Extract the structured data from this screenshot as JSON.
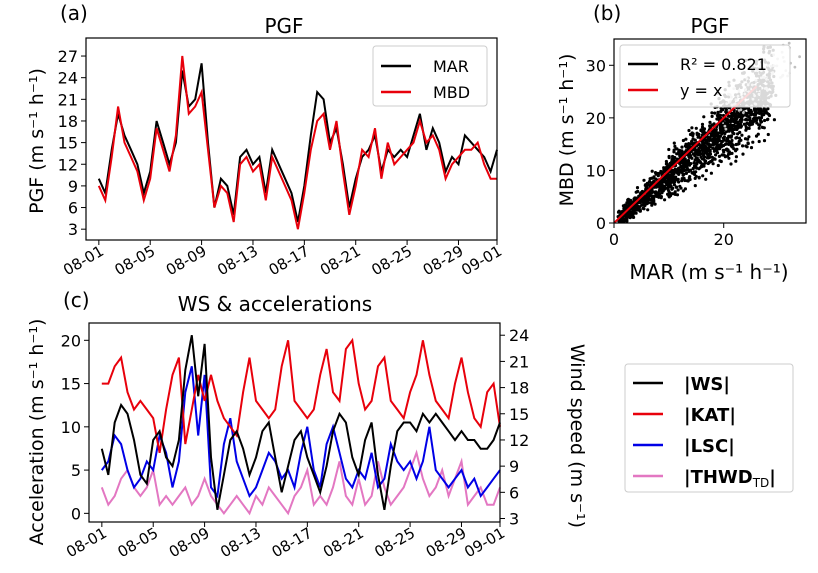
{
  "chart_data": [
    {
      "panel_label": "(a)",
      "type": "line",
      "title": "PGF",
      "xlabel": "",
      "ylabel": "PGF (m s⁻¹ h⁻¹)",
      "ylim": [
        1.5,
        29.5
      ],
      "yticks": [
        3,
        6,
        9,
        12,
        15,
        18,
        21,
        24,
        27
      ],
      "xlim": [
        -1,
        31
      ],
      "xtick_positions": [
        0,
        4,
        8,
        12,
        16,
        20,
        24,
        28,
        31
      ],
      "xtick_labels": [
        "08-01",
        "08-05",
        "08-09",
        "08-13",
        "08-17",
        "08-21",
        "08-25",
        "08-29",
        "09-01"
      ],
      "legend": "top-right",
      "series": [
        {
          "name": "MAR",
          "color": "#000000",
          "x": [
            0,
            0.5,
            1,
            1.5,
            2,
            2.5,
            3,
            3.5,
            4,
            4.5,
            5,
            5.5,
            6,
            6.5,
            7,
            7.5,
            8,
            8.5,
            9,
            9.5,
            10,
            10.5,
            11,
            11.5,
            12,
            12.5,
            13,
            13.5,
            14,
            14.5,
            15,
            15.5,
            16,
            16.5,
            17,
            17.5,
            18,
            18.5,
            19,
            19.5,
            20,
            20.5,
            21,
            21.5,
            22,
            22.5,
            23,
            23.5,
            24,
            24.5,
            25,
            25.5,
            26,
            26.5,
            27,
            27.5,
            28,
            28.5,
            29,
            29.5,
            30,
            30.5,
            31
          ],
          "y": [
            10,
            8,
            14,
            19,
            16,
            14,
            12,
            8,
            11,
            18,
            15,
            12,
            15,
            25,
            20,
            21,
            26,
            15,
            6,
            10,
            9,
            5,
            13,
            14,
            12,
            13,
            8,
            14,
            12,
            10,
            8,
            4,
            9,
            16,
            22,
            21,
            15,
            17,
            12,
            6,
            10,
            13,
            14,
            16,
            11,
            14,
            13,
            14,
            13,
            16,
            19,
            14,
            17,
            15,
            11,
            13,
            12,
            16,
            15,
            14,
            13,
            11,
            14
          ]
        },
        {
          "name": "MBD",
          "color": "#e8000b",
          "x": [
            0,
            0.5,
            1,
            1.5,
            2,
            2.5,
            3,
            3.5,
            4,
            4.5,
            5,
            5.5,
            6,
            6.5,
            7,
            7.5,
            8,
            8.5,
            9,
            9.5,
            10,
            10.5,
            11,
            11.5,
            12,
            12.5,
            13,
            13.5,
            14,
            14.5,
            15,
            15.5,
            16,
            16.5,
            17,
            17.5,
            18,
            18.5,
            19,
            19.5,
            20,
            20.5,
            21,
            21.5,
            22,
            22.5,
            23,
            23.5,
            24,
            24.5,
            25,
            25.5,
            26,
            26.5,
            27,
            27.5,
            28,
            28.5,
            29,
            29.5,
            30,
            30.5,
            31
          ],
          "y": [
            9,
            7,
            13,
            20,
            15,
            13,
            11,
            7,
            10,
            17,
            14,
            11,
            16,
            27,
            19,
            20,
            22,
            14,
            6,
            9,
            8,
            4,
            12,
            13,
            11,
            12,
            7,
            13,
            11,
            9,
            7,
            3,
            8,
            14,
            18,
            19,
            14,
            18,
            11,
            5,
            9,
            14,
            13,
            17,
            10,
            15,
            12,
            13,
            14,
            15,
            18,
            15,
            16,
            14,
            10,
            12,
            13,
            14,
            14,
            15,
            12,
            10,
            10
          ]
        }
      ]
    },
    {
      "panel_label": "(b)",
      "type": "scatter",
      "title": "PGF",
      "xlabel": "MAR (m s⁻¹ h⁻¹)",
      "ylabel": "MBD (m s⁻¹ h⁻¹)",
      "xlim": [
        0,
        35
      ],
      "ylim": [
        0,
        35
      ],
      "xticks": [
        0,
        20
      ],
      "yticks": [
        0,
        10,
        20,
        30
      ],
      "legend": "top-left",
      "cloud_center_slope": 0.9,
      "cloud_color": "#000000",
      "outlier_color": "#c0c0c0",
      "fit_line": {
        "name": "R² = 0.821",
        "color": "#000000"
      },
      "identity_line": {
        "name": "y = x",
        "color": "#e8000b"
      }
    },
    {
      "panel_label": "(c)",
      "type": "line",
      "title": "WS & accelerations",
      "xlabel": "",
      "ylabel": "Acceleration (m s⁻¹ h⁻¹)",
      "ylabel_right": "Wind speed (m s⁻¹)",
      "ylim": [
        -1,
        22
      ],
      "yticks": [
        0,
        5,
        10,
        15,
        20
      ],
      "ylim_right": [
        2.6,
        25.4
      ],
      "yticks_right": [
        3,
        6,
        9,
        12,
        15,
        18,
        21,
        24
      ],
      "xlim": [
        -1,
        31
      ],
      "xtick_positions": [
        0,
        4,
        8,
        12,
        16,
        20,
        24,
        28,
        31
      ],
      "xtick_labels": [
        "08-01",
        "08-05",
        "08-09",
        "08-13",
        "08-17",
        "08-21",
        "08-25",
        "08-29",
        "09-01"
      ],
      "legend": "outside-right",
      "series": [
        {
          "name": "|WS|",
          "axis": "right",
          "color": "#000000",
          "x": [
            0,
            0.5,
            1,
            1.5,
            2,
            2.5,
            3,
            3.5,
            4,
            4.5,
            5,
            5.5,
            6,
            6.5,
            7,
            7.5,
            8,
            8.5,
            9,
            9.5,
            10,
            10.5,
            11,
            11.5,
            12,
            12.5,
            13,
            13.5,
            14,
            14.5,
            15,
            15.5,
            16,
            16.5,
            17,
            17.5,
            18,
            18.5,
            19,
            19.5,
            20,
            20.5,
            21,
            21.5,
            22,
            22.5,
            23,
            23.5,
            24,
            24.5,
            25,
            25.5,
            26,
            26.5,
            27,
            27.5,
            28,
            28.5,
            29,
            29.5,
            30,
            30.5,
            31
          ],
          "y": [
            11,
            8,
            14,
            16,
            15,
            12,
            8,
            7,
            12,
            13,
            10,
            9,
            12,
            20,
            24,
            17,
            23,
            10,
            4,
            8,
            12,
            13,
            11,
            8,
            10,
            13,
            14,
            10,
            6,
            9,
            12,
            13,
            10,
            8,
            6,
            9,
            13,
            15,
            14,
            10,
            8,
            12,
            14,
            8,
            4,
            9,
            13,
            14,
            14,
            13,
            15,
            14,
            15,
            14,
            13,
            12,
            13,
            12,
            12,
            11,
            11,
            12,
            14
          ]
        },
        {
          "name": "|KAT|",
          "axis": "left",
          "color": "#e8000b",
          "x": [
            0,
            0.5,
            1,
            1.5,
            2,
            2.5,
            3,
            3.5,
            4,
            4.5,
            5,
            5.5,
            6,
            6.5,
            7,
            7.5,
            8,
            8.5,
            9,
            9.5,
            10,
            10.5,
            11,
            11.5,
            12,
            12.5,
            13,
            13.5,
            14,
            14.5,
            15,
            15.5,
            16,
            16.5,
            17,
            17.5,
            18,
            18.5,
            19,
            19.5,
            20,
            20.5,
            21,
            21.5,
            22,
            22.5,
            23,
            23.5,
            24,
            24.5,
            25,
            25.5,
            26,
            26.5,
            27,
            27.5,
            28,
            28.5,
            29,
            29.5,
            30,
            30.5,
            31
          ],
          "y": [
            15,
            15,
            17,
            18,
            14,
            12,
            13,
            12,
            11,
            7,
            12,
            16,
            18,
            8,
            12,
            16,
            13,
            16,
            13,
            11,
            10,
            9,
            14,
            18,
            13,
            12,
            11,
            12,
            17,
            20,
            13,
            12,
            11,
            12,
            16,
            19,
            14,
            13,
            19,
            20,
            15,
            12,
            13,
            17,
            18,
            13,
            12,
            11,
            14,
            16,
            20,
            16,
            13,
            12,
            11,
            15,
            18,
            14,
            11,
            10,
            14,
            15,
            10
          ]
        },
        {
          "name": "|LSC|",
          "axis": "left",
          "color": "#0000e6",
          "x": [
            0,
            0.5,
            1,
            1.5,
            2,
            2.5,
            3,
            3.5,
            4,
            4.5,
            5,
            5.5,
            6,
            6.5,
            7,
            7.5,
            8,
            8.5,
            9,
            9.5,
            10,
            10.5,
            11,
            11.5,
            12,
            12.5,
            13,
            13.5,
            14,
            14.5,
            15,
            15.5,
            16,
            16.5,
            17,
            17.5,
            18,
            18.5,
            19,
            19.5,
            20,
            20.5,
            21,
            21.5,
            22,
            22.5,
            23,
            23.5,
            24,
            24.5,
            25,
            25.5,
            26,
            26.5,
            27,
            27.5,
            28,
            28.5,
            29,
            29.5,
            30,
            30.5,
            31
          ],
          "y": [
            5,
            6,
            9,
            8,
            5,
            3,
            4,
            6,
            5,
            9,
            7,
            3,
            6,
            14,
            17,
            9,
            16,
            3,
            2,
            8,
            11,
            6,
            4,
            2,
            3,
            5,
            7,
            6,
            4,
            5,
            3,
            7,
            10,
            5,
            3,
            8,
            10,
            7,
            4,
            3,
            5,
            4,
            7,
            3,
            4,
            8,
            6,
            5,
            6,
            4,
            6,
            10,
            5,
            4,
            3,
            4,
            5,
            3,
            4,
            2,
            3,
            4,
            5
          ]
        },
        {
          "name": "|THWD",
          "name_subscript": "TD",
          "name_suffix": "|",
          "axis": "left",
          "color": "#e377c2",
          "x": [
            0,
            0.5,
            1,
            1.5,
            2,
            2.5,
            3,
            3.5,
            4,
            4.5,
            5,
            5.5,
            6,
            6.5,
            7,
            7.5,
            8,
            8.5,
            9,
            9.5,
            10,
            10.5,
            11,
            11.5,
            12,
            12.5,
            13,
            13.5,
            14,
            14.5,
            15,
            15.5,
            16,
            16.5,
            17,
            17.5,
            18,
            18.5,
            19,
            19.5,
            20,
            20.5,
            21,
            21.5,
            22,
            22.5,
            23,
            23.5,
            24,
            24.5,
            25,
            25.5,
            26,
            26.5,
            27,
            27.5,
            28,
            28.5,
            29,
            29.5,
            30,
            30.5,
            31
          ],
          "y": [
            3,
            1,
            2,
            4,
            5,
            3,
            2,
            3,
            5,
            1,
            2,
            1,
            2,
            3,
            1,
            2,
            4,
            2,
            1,
            0,
            1,
            2,
            1,
            0,
            2,
            1,
            3,
            2,
            1,
            0,
            2,
            3,
            5,
            1,
            2,
            1,
            3,
            6,
            2,
            1,
            4,
            1,
            2,
            6,
            3,
            1,
            2,
            3,
            5,
            7,
            4,
            2,
            3,
            5,
            2,
            4,
            6,
            1,
            2,
            3,
            1,
            1,
            3
          ]
        }
      ]
    }
  ]
}
